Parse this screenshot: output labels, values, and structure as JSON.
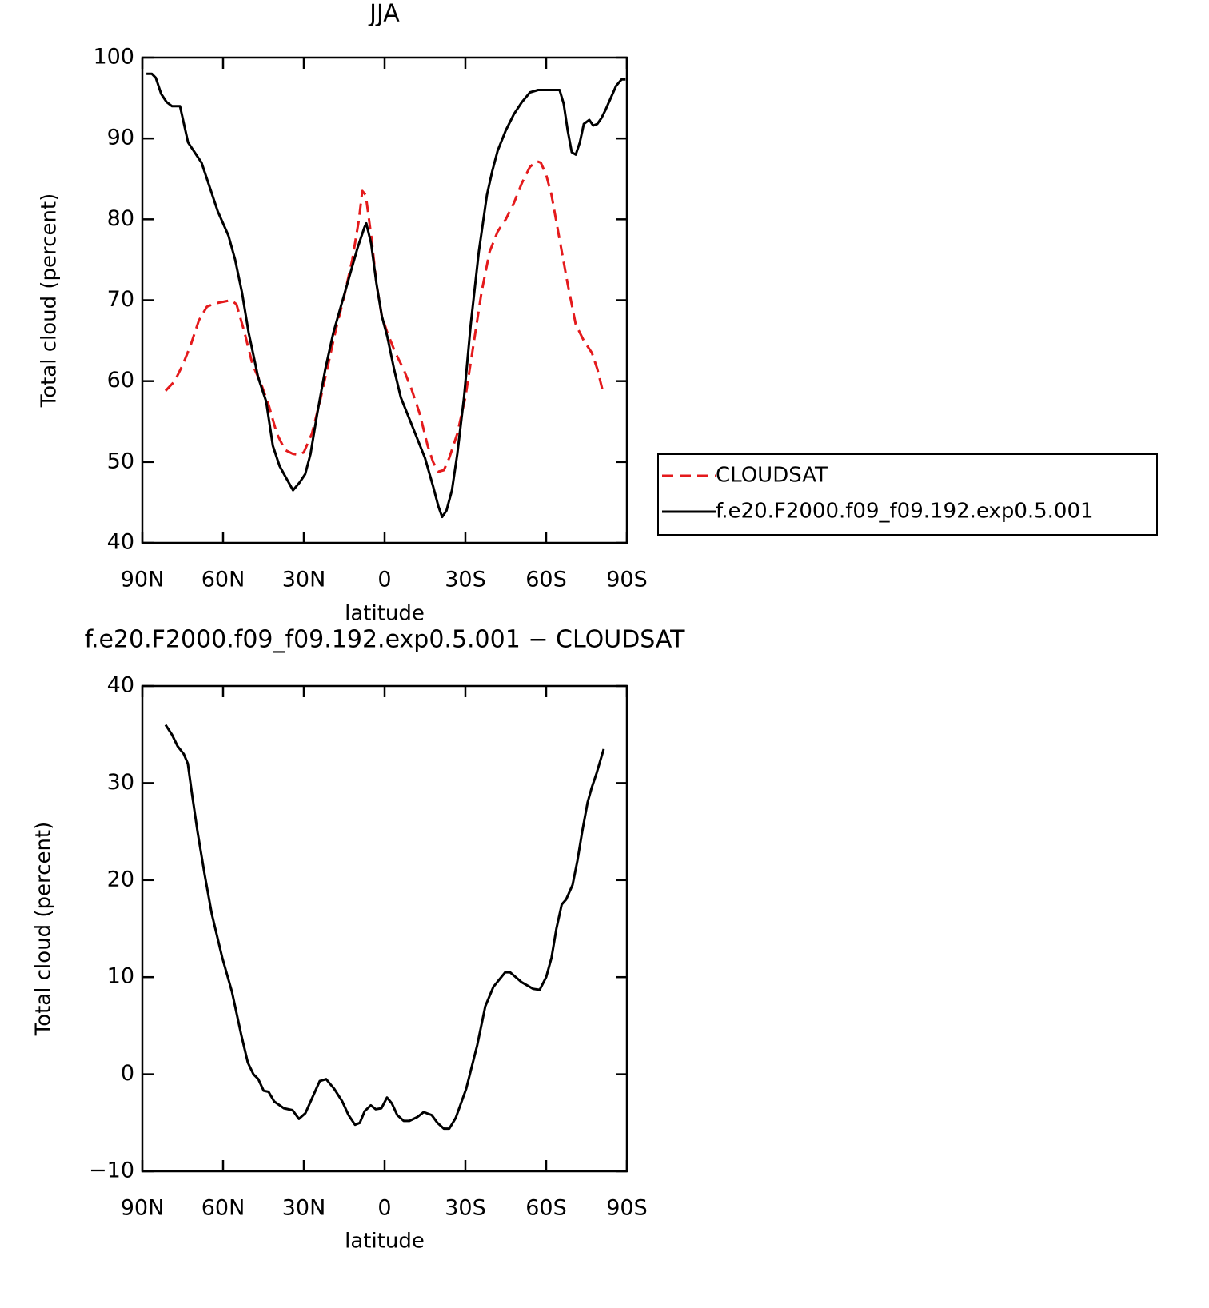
{
  "chart_data": [
    {
      "type": "line",
      "title": "JJA",
      "xlabel": "latitude",
      "ylabel": "Total cloud (percent)",
      "xlim": [
        90,
        -90
      ],
      "ylim": [
        40,
        100
      ],
      "xticks": [
        {
          "value": 90,
          "label": "90N"
        },
        {
          "value": 60,
          "label": "60N"
        },
        {
          "value": 30,
          "label": "30N"
        },
        0,
        {
          "value": -30,
          "label": "30S"
        },
        {
          "value": -60,
          "label": "60S"
        },
        {
          "value": -90,
          "label": "90S"
        }
      ],
      "yticks": [
        40,
        50,
        60,
        70,
        80,
        90,
        100
      ],
      "legend": "right",
      "series": [
        {
          "name": "CLOUDSAT",
          "color": "#e41a1c",
          "line_style": "dashed",
          "x": [
            81.4,
            78,
            75,
            72,
            69,
            66,
            63,
            60,
            57,
            55,
            52,
            49,
            46,
            43,
            40,
            37,
            34,
            32,
            30,
            27,
            24,
            21,
            18,
            15,
            12,
            9.5,
            8.3,
            7,
            5,
            3,
            1,
            -1,
            -4,
            -7,
            -10,
            -13,
            -16,
            -18,
            -19.9,
            -22,
            -24,
            -27,
            -30,
            -33,
            -36,
            -39,
            -42,
            -45,
            -48,
            -51,
            -54,
            -56.5,
            -58,
            -60,
            -62,
            -65,
            -68,
            -71,
            -74,
            -77,
            -79,
            -81.4
          ],
          "values": [
            58.8,
            60,
            62,
            64.5,
            67.5,
            69.2,
            69.6,
            69.8,
            70,
            69.5,
            66,
            62,
            59.8,
            57,
            53.5,
            51.5,
            51,
            50.9,
            51.2,
            53.5,
            57.5,
            62,
            66.5,
            70.5,
            75,
            80,
            83.5,
            83,
            78,
            72,
            68,
            66,
            63.5,
            61.5,
            59,
            56,
            52,
            50,
            48.8,
            49,
            50.5,
            53.5,
            58,
            64.5,
            71,
            76,
            78.5,
            80,
            82,
            84.5,
            86.5,
            87.2,
            87,
            85.5,
            83,
            77.5,
            72,
            67,
            65,
            63.5,
            61.5,
            58.3
          ]
        },
        {
          "name": "f.e20.F2000.f09_f09.192.exp0.5.001",
          "color": "#000000",
          "line_style": "solid",
          "x": [
            88.5,
            86.5,
            85,
            83,
            81,
            79,
            77.5,
            76,
            73,
            68,
            65,
            62,
            58,
            55.5,
            53,
            50.5,
            47,
            44,
            41.5,
            39,
            36.5,
            34,
            31.5,
            29.5,
            27.5,
            25,
            22,
            19,
            16,
            13,
            10,
            7.5,
            6.8,
            5,
            3,
            1,
            -1,
            -3.5,
            -6,
            -9,
            -12,
            -15,
            -18,
            -20,
            -21.4,
            -23,
            -25,
            -27,
            -29.5,
            -32,
            -35,
            -38,
            -40,
            -42,
            -45,
            -48,
            -51,
            -54,
            -57,
            -60,
            -62,
            -65,
            -66.5,
            -68,
            -69.5,
            -71,
            -72.5,
            -74,
            -76,
            -77.5,
            -79,
            -80.5,
            -82,
            -84,
            -86,
            -88,
            -89.5
          ],
          "values": [
            98,
            98,
            97.5,
            95.5,
            94.5,
            94,
            94,
            94,
            89.5,
            87,
            84,
            81,
            78,
            75,
            71,
            66,
            60.5,
            57.5,
            52,
            49.5,
            48,
            46.5,
            47.5,
            48.5,
            51,
            56,
            61.5,
            66,
            69.5,
            73,
            76.5,
            79,
            79.5,
            77,
            72,
            68,
            65.5,
            61.5,
            58,
            55.5,
            53,
            50.5,
            47,
            44.5,
            43.2,
            44,
            46.5,
            51,
            58,
            67,
            76,
            83,
            86,
            88.5,
            91,
            93,
            94.5,
            95.7,
            96,
            96,
            96,
            96,
            94.3,
            91,
            88.3,
            88,
            89.5,
            91.8,
            92.3,
            91.6,
            91.8,
            92.5,
            93.5,
            95,
            96.5,
            97.3,
            97.3
          ]
        }
      ]
    },
    {
      "type": "line",
      "title": "f.e20.F2000.f09_f09.192.exp0.5.001 − CLOUDSAT",
      "xlabel": "latitude",
      "ylabel": "Total cloud (percent)",
      "xlim": [
        90,
        -90
      ],
      "ylim": [
        -10,
        40
      ],
      "xticks": [
        {
          "value": 90,
          "label": "90N"
        },
        {
          "value": 60,
          "label": "60N"
        },
        {
          "value": 30,
          "label": "30N"
        },
        0,
        {
          "value": -30,
          "label": "30S"
        },
        {
          "value": -60,
          "label": "60S"
        },
        {
          "value": -90,
          "label": "90S"
        }
      ],
      "yticks": [
        {
          "value": -10,
          "label": "−10"
        },
        0,
        10,
        20,
        30,
        40
      ],
      "series": [
        {
          "color": "#000000",
          "line_style": "solid",
          "x": [
            81.4,
            79,
            76.9,
            74.6,
            73.1,
            71.6,
            69.5,
            66.8,
            64.2,
            60.3,
            56.7,
            53.2,
            50.8,
            48.7,
            46.9,
            44.9,
            43.1,
            41,
            37.4,
            34.2,
            31.8,
            29.4,
            27,
            24.1,
            21.7,
            18.7,
            15.7,
            13.4,
            11,
            9.2,
            7.4,
            5.1,
            3.3,
            1.2,
            -0.9,
            -2.7,
            -4.7,
            -7.1,
            -9.2,
            -12.2,
            -14.5,
            -17.5,
            -19.6,
            -22,
            -24,
            -26.4,
            -30.3,
            -34.4,
            -37.4,
            -40.4,
            -44.8,
            -46.6,
            -50.8,
            -55.2,
            -57.6,
            -60,
            -62,
            -63.8,
            -65.8,
            -67.4,
            -69.8,
            -71.6,
            -73.4,
            -75.4,
            -76.9,
            -78.7,
            -81.4
          ],
          "values": [
            36,
            35,
            33.8,
            33,
            32,
            29,
            25,
            20.5,
            16.5,
            12,
            8.5,
            4,
            1.2,
            0,
            -0.5,
            -1.7,
            -1.8,
            -2.8,
            -3.5,
            -3.7,
            -4.6,
            -4,
            -2.5,
            -0.7,
            -0.5,
            -1.5,
            -2.8,
            -4.2,
            -5.2,
            -5,
            -3.8,
            -3.2,
            -3.6,
            -3.5,
            -2.4,
            -3,
            -4.2,
            -4.8,
            -4.8,
            -4.4,
            -3.9,
            -4.2,
            -5,
            -5.6,
            -5.6,
            -4.5,
            -1.5,
            3,
            7,
            9,
            10.5,
            10.5,
            9.5,
            8.8,
            8.7,
            10,
            12,
            15,
            17.5,
            18,
            19.5,
            22,
            25,
            28,
            29.5,
            31,
            33.5
          ]
        }
      ]
    }
  ]
}
